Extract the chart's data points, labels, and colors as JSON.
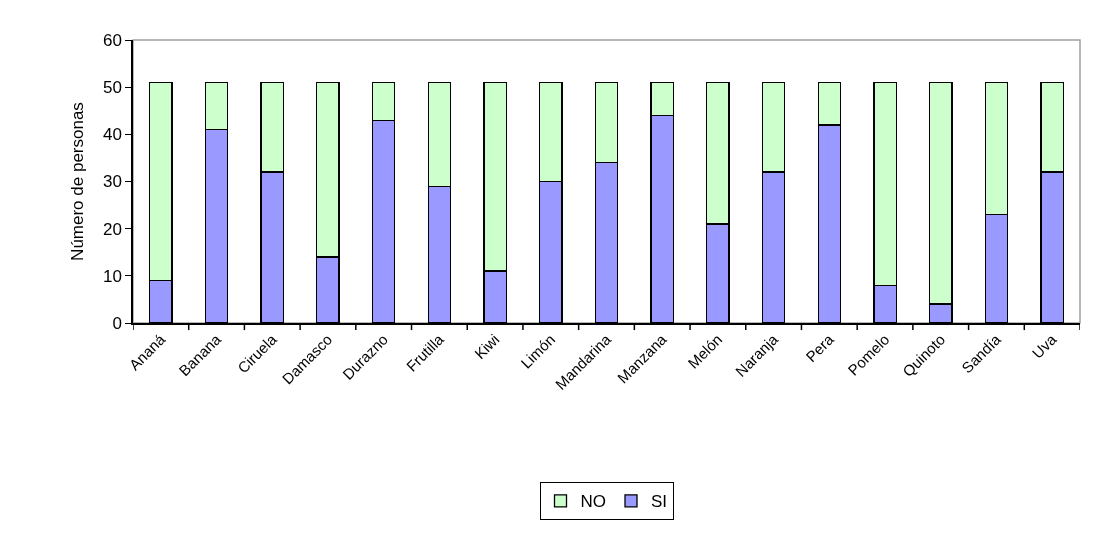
{
  "chart_data": {
    "type": "bar",
    "stacked": true,
    "ylabel": "Número de personas",
    "categories": [
      "Ananá",
      "Banana",
      "Ciruela",
      "Damasco",
      "Durazno",
      "Frutilla",
      "Kiwi",
      "Limón",
      "Mandarina",
      "Manzana",
      "Melón",
      "Naranja",
      "Pera",
      "Pomelo",
      "Quinoto",
      "Sandía",
      "Uva"
    ],
    "series": [
      {
        "name": "SI",
        "color": "#9999ff",
        "values": [
          9,
          41,
          32,
          14,
          43,
          29,
          11,
          30,
          34,
          44,
          21,
          32,
          42,
          8,
          4,
          23,
          32
        ]
      },
      {
        "name": "NO",
        "color": "#ccffcc",
        "values": [
          42,
          10,
          19,
          37,
          8,
          22,
          40,
          21,
          17,
          7,
          30,
          19,
          9,
          43,
          47,
          28,
          19
        ]
      }
    ],
    "ylim": [
      0,
      60
    ],
    "yticks": [
      0,
      10,
      20,
      30,
      40,
      50,
      60
    ],
    "legend": "bottom"
  }
}
